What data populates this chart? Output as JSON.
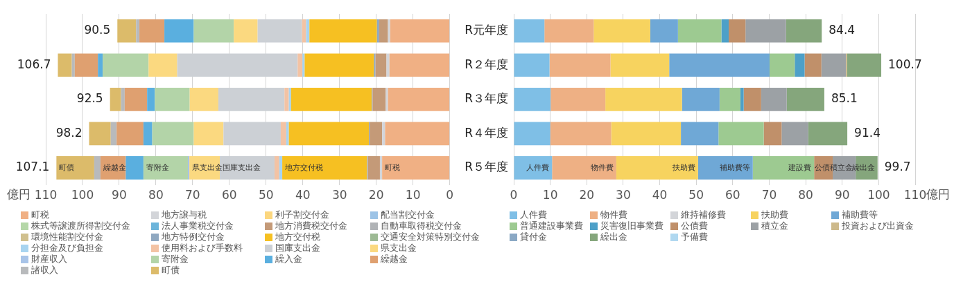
{
  "chart_data": [
    {
      "type": "bar",
      "orientation": "horizontal",
      "stacked": true,
      "categories": [
        "R元年度",
        "R２年度",
        "R３年度",
        "R４年度",
        "R５年度"
      ],
      "xlabel": "億円",
      "xlim": [
        110,
        0
      ],
      "xticks": [
        110,
        100,
        90,
        80,
        70,
        60,
        50,
        40,
        30,
        20,
        10,
        0
      ],
      "grid": "x",
      "legend": "bottom",
      "tick_labels": "x",
      "totals": [
        "90.5",
        "106.7",
        "92.5",
        "98.2",
        "107.1"
      ],
      "annotations": [
        {
          "text": "町債",
          "x": 107.1,
          "y": "R５年度"
        },
        {
          "text": "繰越金",
          "x": 95.1,
          "y": "R５年度"
        },
        {
          "text": "寄附金",
          "x": 83.4,
          "y": "R５年度"
        },
        {
          "text": "県支出金",
          "x": 70.9,
          "y": "R５年度"
        },
        {
          "text": "国庫支出金",
          "x": 62.6,
          "y": "R５年度"
        },
        {
          "text": "地方交付税",
          "x": 45.6,
          "y": "R５年度"
        },
        {
          "text": "町税",
          "x": 18.4,
          "y": "R５年度"
        }
      ],
      "series": [
        {
          "name": "町税",
          "color": "#f0b084",
          "values": [
            16.2,
            16.4,
            16.8,
            17.6,
            18.4
          ]
        },
        {
          "name": "地方譲与税",
          "color": "#d3d5d9",
          "values": [
            0.6,
            0.8,
            0.6,
            0.8,
            0.6
          ]
        },
        {
          "name": "利子割交付金",
          "color": "#fcd77f",
          "values": [
            null,
            null,
            null,
            null,
            null
          ]
        },
        {
          "name": "配当割交付金",
          "color": "#9cc3e6",
          "values": [
            null,
            null,
            null,
            null,
            null
          ]
        },
        {
          "name": "株式等譲渡所得割交付金",
          "color": "#b5d7a8",
          "values": [
            null,
            null,
            null,
            null,
            null
          ]
        },
        {
          "name": "法人事業税交付金",
          "color": "#6cb4da",
          "values": [
            null,
            null,
            null,
            null,
            null
          ]
        },
        {
          "name": "地方消費税交付金",
          "color": "#c49a78",
          "values": [
            2.4,
            3.0,
            3.6,
            3.4,
            3.3
          ]
        },
        {
          "name": "自動車取得税交付金",
          "color": "#b0b3b6",
          "values": [
            null,
            null,
            null,
            null,
            null
          ]
        },
        {
          "name": "環境性能割交付金",
          "color": "#d0c08e",
          "values": [
            null,
            null,
            null,
            null,
            null
          ]
        },
        {
          "name": "地方特例交付金",
          "color": "#8fa8c0",
          "values": [
            0.6,
            0.4,
            0.2,
            0.2,
            0.2
          ]
        },
        {
          "name": "地方交付税",
          "color": "#f6c022",
          "values": [
            18.4,
            18.9,
            22.0,
            21.8,
            23.1
          ]
        },
        {
          "name": "交通安全対策特別交付金",
          "color": "#9dba94",
          "values": [
            null,
            null,
            null,
            null,
            null
          ]
        },
        {
          "name": "分担金及び負担金",
          "color": "#a8d4f0",
          "values": [
            0.9,
            0.6,
            0.6,
            0.7,
            0.8
          ]
        },
        {
          "name": "使用料および手数料",
          "color": "#f3c3a4",
          "values": [
            1.1,
            1.3,
            1.2,
            1.5,
            1.3
          ]
        },
        {
          "name": "国庫支出金",
          "color": "#ccd0d5",
          "values": [
            12.1,
            32.8,
            18.0,
            15.6,
            14.9
          ]
        },
        {
          "name": "県支出金",
          "color": "#fbd980",
          "values": [
            6.5,
            7.8,
            7.8,
            8.1,
            8.3
          ]
        },
        {
          "name": "財産収入",
          "color": "#a8c4e8",
          "values": [
            null,
            null,
            null,
            null,
            0.4
          ]
        },
        {
          "name": "寄附金",
          "color": "#b3d4a8",
          "values": [
            10.9,
            12.5,
            9.5,
            11.3,
            12.1
          ]
        },
        {
          "name": "繰入金",
          "color": "#5aafdf",
          "values": [
            8.0,
            1.3,
            2.1,
            2.4,
            4.8
          ]
        },
        {
          "name": "繰越金",
          "color": "#dfa070",
          "values": [
            6.8,
            6.3,
            6.1,
            7.3,
            6.9
          ]
        },
        {
          "name": "諸収入",
          "color": "#b8babc",
          "values": [
            0.9,
            0.8,
            1.0,
            1.6,
            1.7
          ]
        },
        {
          "name": "町債",
          "color": "#dcbb6a",
          "values": [
            5.1,
            3.8,
            3.0,
            5.9,
            10.3
          ]
        }
      ]
    },
    {
      "type": "bar",
      "orientation": "horizontal",
      "stacked": true,
      "categories": [
        "R元年度",
        "R２年度",
        "R３年度",
        "R４年度",
        "R５年度"
      ],
      "xlabel": "億円",
      "xlim": [
        0,
        110
      ],
      "xticks": [
        0,
        10,
        20,
        30,
        40,
        50,
        60,
        70,
        80,
        90,
        100,
        110
      ],
      "grid": "x",
      "legend": "bottom",
      "totals": [
        "84.4",
        "100.7",
        "85.1",
        "91.4",
        "99.7"
      ],
      "annotations": [
        {
          "text": "人件費",
          "x": 10.5,
          "y": "R５年度"
        },
        {
          "text": "物件費",
          "x": 28.1,
          "y": "R５年度"
        },
        {
          "text": "扶助費",
          "x": 50.5,
          "y": "R５年度"
        },
        {
          "text": "補助費等",
          "x": 65.5,
          "y": "R５年度"
        },
        {
          "text": "建設費",
          "x": 82.3,
          "y": "R５年度"
        },
        {
          "text": "公債",
          "x": 87.4,
          "y": "R５年度"
        },
        {
          "text": "積立金",
          "x": 93.7,
          "y": "R５年度"
        },
        {
          "text": "繰出金",
          "x": 99.7,
          "y": "R５年度"
        }
      ],
      "series": [
        {
          "name": "人件費",
          "color": "#7fbfe6",
          "values": [
            8.4,
            9.8,
            10.1,
            10.0,
            10.5
          ]
        },
        {
          "name": "物件費",
          "color": "#eeb084",
          "values": [
            13.5,
            16.7,
            15.0,
            16.7,
            17.6
          ]
        },
        {
          "name": "維持補修費",
          "color": "#d3d5d9",
          "values": [
            null,
            null,
            null,
            null,
            null
          ]
        },
        {
          "name": "扶助費",
          "color": "#f7d35f",
          "values": [
            15.5,
            16.1,
            21.0,
            19.1,
            22.4
          ]
        },
        {
          "name": "補助費等",
          "color": "#6fa8d6",
          "values": [
            7.6,
            27.5,
            10.3,
            10.3,
            15.0
          ]
        },
        {
          "name": "普通建設事業費",
          "color": "#9dca91",
          "values": [
            11.9,
            6.9,
            5.7,
            12.4,
            16.8
          ]
        },
        {
          "name": "災害復旧事業費",
          "color": "#4da0c8",
          "values": [
            2.0,
            2.7,
            0.9,
            null,
            null
          ]
        },
        {
          "name": "公債費",
          "color": "#c0906a",
          "values": [
            4.6,
            4.6,
            4.8,
            4.9,
            5.1
          ]
        },
        {
          "name": "積立金",
          "color": "#9ca1a5",
          "values": [
            11.1,
            6.7,
            7.0,
            7.3,
            6.3
          ]
        },
        {
          "name": "投資および出資金",
          "color": "#cdb98a",
          "values": [
            null,
            0.3,
            null,
            null,
            null
          ]
        },
        {
          "name": "貸付金",
          "color": "#8aa8c4",
          "values": [
            null,
            null,
            null,
            null,
            null
          ]
        },
        {
          "name": "繰出金",
          "color": "#85a67c",
          "values": [
            9.8,
            9.4,
            10.3,
            10.7,
            6.0
          ]
        },
        {
          "name": "予備費",
          "color": "#b0d8f0",
          "values": [
            null,
            null,
            null,
            null,
            null
          ]
        }
      ]
    }
  ]
}
